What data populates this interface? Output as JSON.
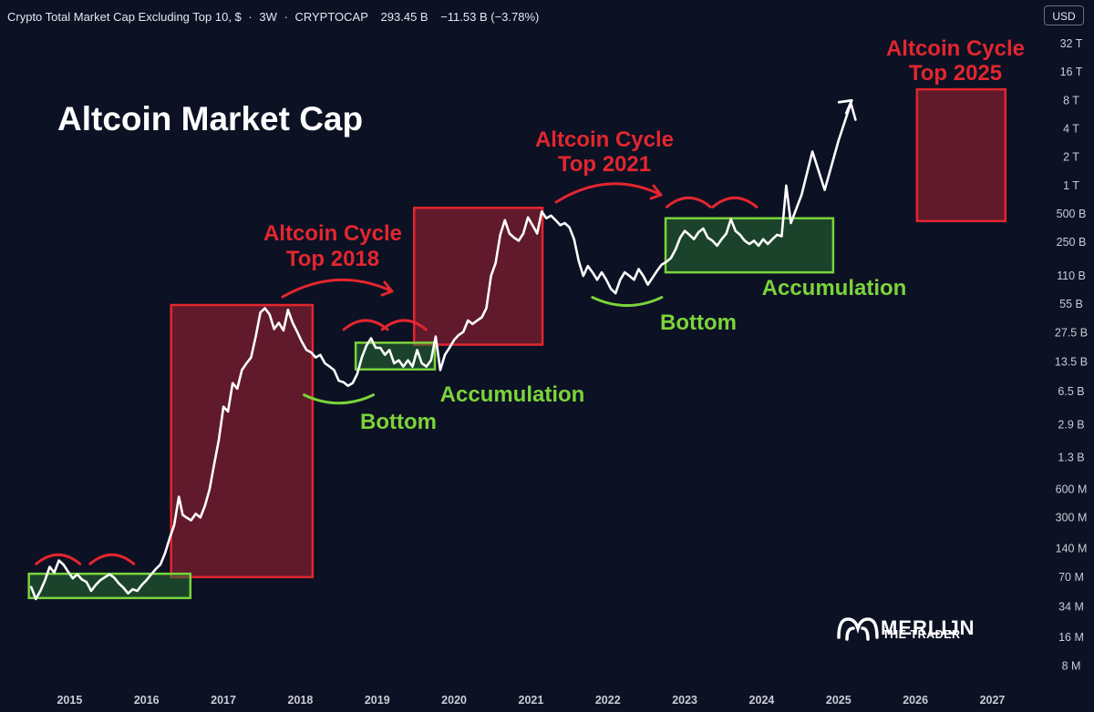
{
  "header": {
    "symbol": "Crypto Total Market Cap Excluding Top 10, $",
    "sep1": "·",
    "interval": "3W",
    "sep2": "·",
    "exchange": "CRYPTOCAP",
    "price": "293.45 B",
    "change": "−11.53 B (−3.78%)"
  },
  "currency_button": "USD",
  "logo": {
    "name": "MERLIJN",
    "subtitle": "THE TRADER"
  },
  "chart_data": {
    "type": "line",
    "title": "Altcoin Market Cap",
    "xlabel": "",
    "ylabel": "",
    "y_scale": "log",
    "xlim": [
      2014.55,
      2027.45
    ],
    "ylim_usd": [
      6600000.0,
      40000000000000.0
    ],
    "x_ticks": [
      "2015",
      "2016",
      "2017",
      "2018",
      "2019",
      "2020",
      "2021",
      "2022",
      "2023",
      "2024",
      "2025",
      "2026",
      "2027"
    ],
    "y_ticks": [
      {
        "label": "32 T",
        "value": 32000000000000.0
      },
      {
        "label": "16 T",
        "value": 16000000000000.0
      },
      {
        "label": "8 T",
        "value": 8000000000000.0
      },
      {
        "label": "4 T",
        "value": 4000000000000.0
      },
      {
        "label": "2 T",
        "value": 2000000000000.0
      },
      {
        "label": "1 T",
        "value": 1000000000000.0
      },
      {
        "label": "500 B",
        "value": 500000000000.0
      },
      {
        "label": "250 B",
        "value": 250000000000.0
      },
      {
        "label": "110 B",
        "value": 110000000000.0
      },
      {
        "label": "55 B",
        "value": 55000000000.0
      },
      {
        "label": "27.5 B",
        "value": 27500000000.0
      },
      {
        "label": "13.5 B",
        "value": 13500000000.0
      },
      {
        "label": "6.5 B",
        "value": 6500000000.0
      },
      {
        "label": "2.9 B",
        "value": 2900000000.0
      },
      {
        "label": "1.3 B",
        "value": 1300000000.0
      },
      {
        "label": "600 M",
        "value": 600000000.0
      },
      {
        "label": "300 M",
        "value": 300000000.0
      },
      {
        "label": "140 M",
        "value": 140000000.0
      },
      {
        "label": "70 M",
        "value": 70000000.0
      },
      {
        "label": "34 M",
        "value": 34000000.0
      },
      {
        "label": "16 M",
        "value": 16000000.0
      },
      {
        "label": "8 M",
        "value": 8000000.0
      }
    ],
    "series": [
      {
        "values": [
          [
            2014.6,
            55000000.0
          ],
          [
            2014.66,
            41000000.0
          ],
          [
            2014.72,
            50000000.0
          ],
          [
            2014.78,
            65000000.0
          ],
          [
            2014.84,
            90000000.0
          ],
          [
            2014.9,
            78000000.0
          ],
          [
            2014.96,
            105000000.0
          ],
          [
            2015.02,
            95000000.0
          ],
          [
            2015.08,
            80000000.0
          ],
          [
            2015.14,
            68000000.0
          ],
          [
            2015.2,
            75000000.0
          ],
          [
            2015.26,
            66000000.0
          ],
          [
            2015.32,
            62000000.0
          ],
          [
            2015.38,
            50000000.0
          ],
          [
            2015.44,
            58000000.0
          ],
          [
            2015.5,
            65000000.0
          ],
          [
            2015.56,
            70000000.0
          ],
          [
            2015.62,
            75000000.0
          ],
          [
            2015.68,
            69000000.0
          ],
          [
            2015.74,
            60000000.0
          ],
          [
            2015.8,
            54000000.0
          ],
          [
            2015.86,
            47000000.0
          ],
          [
            2015.92,
            52000000.0
          ],
          [
            2015.98,
            50000000.0
          ],
          [
            2016.04,
            58000000.0
          ],
          [
            2016.1,
            65000000.0
          ],
          [
            2016.16,
            75000000.0
          ],
          [
            2016.22,
            85000000.0
          ],
          [
            2016.28,
            95000000.0
          ],
          [
            2016.34,
            125000000.0
          ],
          [
            2016.4,
            180000000.0
          ],
          [
            2016.46,
            250000000.0
          ],
          [
            2016.52,
            500000000.0
          ],
          [
            2016.57,
            320000000.0
          ],
          [
            2016.62,
            300000000.0
          ],
          [
            2016.68,
            280000000.0
          ],
          [
            2016.74,
            330000000.0
          ],
          [
            2016.8,
            300000000.0
          ],
          [
            2016.86,
            400000000.0
          ],
          [
            2016.92,
            600000000.0
          ],
          [
            2016.98,
            1100000000.0
          ],
          [
            2017.04,
            2000000000.0
          ],
          [
            2017.1,
            4500000000.0
          ],
          [
            2017.16,
            4000000000.0
          ],
          [
            2017.22,
            8000000000.0
          ],
          [
            2017.28,
            7000000000.0
          ],
          [
            2017.34,
            11000000000.0
          ],
          [
            2017.4,
            13000000000.0
          ],
          [
            2017.46,
            15000000000.0
          ],
          [
            2017.52,
            25000000000.0
          ],
          [
            2017.58,
            45000000000.0
          ],
          [
            2017.64,
            50000000000.0
          ],
          [
            2017.7,
            43000000000.0
          ],
          [
            2017.76,
            30000000000.0
          ],
          [
            2017.82,
            35000000000.0
          ],
          [
            2017.88,
            29000000000.0
          ],
          [
            2017.94,
            48000000000.0
          ],
          [
            2018.0,
            35000000000.0
          ],
          [
            2018.06,
            28000000000.0
          ],
          [
            2018.12,
            22000000000.0
          ],
          [
            2018.18,
            18000000000.0
          ],
          [
            2018.24,
            17000000000.0
          ],
          [
            2018.3,
            15000000000.0
          ],
          [
            2018.36,
            16000000000.0
          ],
          [
            2018.42,
            13000000000.0
          ],
          [
            2018.48,
            12000000000.0
          ],
          [
            2018.54,
            11000000000.0
          ],
          [
            2018.6,
            8500000000.0
          ],
          [
            2018.66,
            8200000000.0
          ],
          [
            2018.72,
            7500000000.0
          ],
          [
            2018.78,
            8000000000.0
          ],
          [
            2018.84,
            10000000000.0
          ],
          [
            2018.9,
            15000000000.0
          ],
          [
            2018.96,
            20000000000.0
          ],
          [
            2019.02,
            24000000000.0
          ],
          [
            2019.08,
            19000000000.0
          ],
          [
            2019.14,
            19000000000.0
          ],
          [
            2019.2,
            16000000000.0
          ],
          [
            2019.26,
            18000000000.0
          ],
          [
            2019.32,
            13000000000.0
          ],
          [
            2019.38,
            14000000000.0
          ],
          [
            2019.44,
            12000000000.0
          ],
          [
            2019.5,
            14000000000.0
          ],
          [
            2019.56,
            12000000000.0
          ],
          [
            2019.62,
            18000000000.0
          ],
          [
            2019.68,
            13000000000.0
          ],
          [
            2019.74,
            12000000000.0
          ],
          [
            2019.8,
            14000000000.0
          ],
          [
            2019.86,
            25000000000.0
          ],
          [
            2019.92,
            11000000000.0
          ],
          [
            2019.98,
            16000000000.0
          ],
          [
            2020.04,
            19000000000.0
          ],
          [
            2020.1,
            23000000000.0
          ],
          [
            2020.16,
            26000000000.0
          ],
          [
            2020.22,
            28000000000.0
          ],
          [
            2020.28,
            37000000000.0
          ],
          [
            2020.34,
            34000000000.0
          ],
          [
            2020.4,
            37000000000.0
          ],
          [
            2020.46,
            40000000000.0
          ],
          [
            2020.52,
            50000000000.0
          ],
          [
            2020.58,
            110000000000.0
          ],
          [
            2020.64,
            150000000000.0
          ],
          [
            2020.7,
            300000000000.0
          ],
          [
            2020.76,
            430000000000.0
          ],
          [
            2020.82,
            310000000000.0
          ],
          [
            2020.88,
            280000000000.0
          ],
          [
            2020.94,
            260000000000.0
          ],
          [
            2021.0,
            310000000000.0
          ],
          [
            2021.06,
            460000000000.0
          ],
          [
            2021.12,
            380000000000.0
          ],
          [
            2021.18,
            310000000000.0
          ],
          [
            2021.24,
            530000000000.0
          ],
          [
            2021.3,
            450000000000.0
          ],
          [
            2021.36,
            480000000000.0
          ],
          [
            2021.42,
            430000000000.0
          ],
          [
            2021.48,
            380000000000.0
          ],
          [
            2021.54,
            400000000000.0
          ],
          [
            2021.6,
            360000000000.0
          ],
          [
            2021.66,
            270000000000.0
          ],
          [
            2021.72,
            160000000000.0
          ],
          [
            2021.78,
            110000000000.0
          ],
          [
            2021.84,
            140000000000.0
          ],
          [
            2021.9,
            120000000000.0
          ],
          [
            2021.96,
            100000000000.0
          ],
          [
            2022.02,
            120000000000.0
          ],
          [
            2022.08,
            100000000000.0
          ],
          [
            2022.14,
            80000000000.0
          ],
          [
            2022.2,
            72000000000.0
          ],
          [
            2022.26,
            100000000000.0
          ],
          [
            2022.32,
            120000000000.0
          ],
          [
            2022.38,
            110000000000.0
          ],
          [
            2022.44,
            100000000000.0
          ],
          [
            2022.5,
            130000000000.0
          ],
          [
            2022.56,
            110000000000.0
          ],
          [
            2022.62,
            89000000000.0
          ],
          [
            2022.68,
            105000000000.0
          ],
          [
            2022.74,
            125000000000.0
          ],
          [
            2022.8,
            145000000000.0
          ],
          [
            2022.86,
            155000000000.0
          ],
          [
            2022.92,
            170000000000.0
          ],
          [
            2022.98,
            210000000000.0
          ],
          [
            2023.04,
            280000000000.0
          ],
          [
            2023.1,
            330000000000.0
          ],
          [
            2023.16,
            300000000000.0
          ],
          [
            2023.22,
            270000000000.0
          ],
          [
            2023.28,
            320000000000.0
          ],
          [
            2023.34,
            350000000000.0
          ],
          [
            2023.4,
            280000000000.0
          ],
          [
            2023.46,
            260000000000.0
          ],
          [
            2023.52,
            230000000000.0
          ],
          [
            2023.58,
            270000000000.0
          ],
          [
            2023.64,
            310000000000.0
          ],
          [
            2023.7,
            440000000000.0
          ],
          [
            2023.76,
            330000000000.0
          ],
          [
            2023.82,
            300000000000.0
          ],
          [
            2023.88,
            260000000000.0
          ],
          [
            2023.94,
            240000000000.0
          ],
          [
            2024.0,
            260000000000.0
          ],
          [
            2024.06,
            230000000000.0
          ],
          [
            2024.12,
            270000000000.0
          ],
          [
            2024.18,
            240000000000.0
          ],
          [
            2024.24,
            270000000000.0
          ],
          [
            2024.3,
            300000000000.0
          ],
          [
            2024.36,
            290000000000.0
          ],
          [
            2024.42,
            1000000000000.0
          ],
          [
            2024.48,
            400000000000.0
          ],
          [
            2024.62,
            800000000000.0
          ],
          [
            2024.76,
            2300000000000.0
          ],
          [
            2024.92,
            900000000000.0
          ],
          [
            2025.1,
            3000000000000.0
          ],
          [
            2025.26,
            7500000000000.0
          ],
          [
            2025.32,
            5000000000000.0
          ]
        ]
      }
    ],
    "annotations": {
      "top_boxes": [
        {
          "label": [
            "Altcoin Cycle",
            "Top 2018"
          ],
          "x": [
            2016.42,
            2018.26
          ],
          "y": [
            70000000.0,
            54000000000.0
          ]
        },
        {
          "label": [
            "Altcoin Cycle",
            "Top 2021"
          ],
          "x": [
            2019.58,
            2021.25
          ],
          "y": [
            20500000000.0,
            580000000000.0
          ]
        },
        {
          "label": [
            "Altcoin Cycle",
            "Top 2025"
          ],
          "x": [
            2026.12,
            2027.27
          ],
          "y": [
            420000000000.0,
            10500000000000.0
          ]
        }
      ],
      "accumulation_boxes": [
        {
          "label": "Accumulation",
          "x": [
            2014.57,
            2016.67
          ],
          "y": [
            42000000.0,
            76000000.0
          ]
        },
        {
          "label": "Accumulation",
          "x": [
            2018.82,
            2019.85
          ],
          "y": [
            11200000000.0,
            21500000000.0
          ]
        },
        {
          "label": "Accumulation",
          "x": [
            2022.85,
            2025.03
          ],
          "y": [
            120000000000.0,
            450000000000.0
          ]
        }
      ],
      "bottoms": [
        {
          "label": "Bottom",
          "x": 2018.6,
          "y": 8200000000.0
        },
        {
          "label": "Bottom",
          "x": 2022.35,
          "y": 89000000000.0
        }
      ],
      "arrows": [
        "Top 2018",
        "Top 2021"
      ],
      "caps": 8
    }
  }
}
